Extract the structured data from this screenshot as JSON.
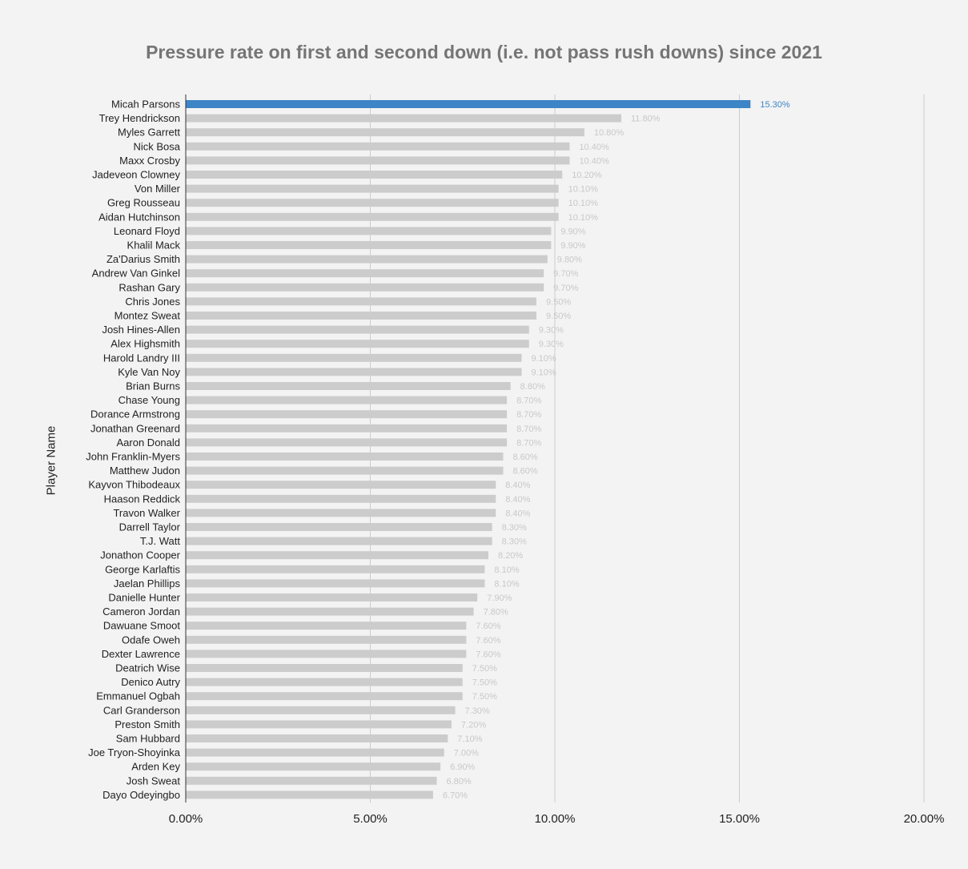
{
  "chart_data": {
    "type": "bar",
    "orientation": "horizontal",
    "title": "Pressure rate on first and second down (i.e. not pass rush downs) since 2021",
    "ylabel": "Player Name",
    "xlabel": "",
    "xlim": [
      0,
      20
    ],
    "x_ticks": [
      0,
      5,
      10,
      15,
      20
    ],
    "x_tick_labels": [
      "0.00%",
      "5.00%",
      "10.00%",
      "15.00%",
      "20.00%"
    ],
    "grid": "vertical",
    "legend": "none",
    "colors": {
      "highlight": "#3d85c6",
      "bar": "#cccccc",
      "label": "#c8c8c8",
      "grid": "#cccccc",
      "baseline": "#333333"
    },
    "highlight_index": 0,
    "categories": [
      "Micah Parsons",
      "Trey Hendrickson",
      "Myles Garrett",
      "Nick Bosa",
      "Maxx Crosby",
      "Jadeveon Clowney",
      "Von Miller",
      "Greg Rousseau",
      "Aidan Hutchinson",
      "Leonard Floyd",
      "Khalil Mack",
      "Za'Darius Smith",
      "Andrew Van Ginkel",
      "Rashan Gary",
      "Chris Jones",
      "Montez Sweat",
      "Josh Hines-Allen",
      "Alex Highsmith",
      "Harold Landry III",
      "Kyle Van Noy",
      "Brian Burns",
      "Chase Young",
      "Dorance Armstrong",
      "Jonathan Greenard",
      "Aaron Donald",
      "John Franklin-Myers",
      "Matthew Judon",
      "Kayvon Thibodeaux",
      "Haason Reddick",
      "Travon Walker",
      "Darrell Taylor",
      "T.J. Watt",
      "Jonathon Cooper",
      "George Karlaftis",
      "Jaelan Phillips",
      "Danielle Hunter",
      "Cameron Jordan",
      "Dawuane Smoot",
      "Odafe Oweh",
      "Dexter Lawrence",
      "Deatrich Wise",
      "Denico Autry",
      "Emmanuel Ogbah",
      "Carl Granderson",
      "Preston Smith",
      "Sam Hubbard",
      "Joe Tryon-Shoyinka",
      "Arden Key",
      "Josh Sweat",
      "Dayo Odeyingbo"
    ],
    "values": [
      15.3,
      11.8,
      10.8,
      10.4,
      10.4,
      10.2,
      10.1,
      10.1,
      10.1,
      9.9,
      9.9,
      9.8,
      9.7,
      9.7,
      9.5,
      9.5,
      9.3,
      9.3,
      9.1,
      9.1,
      8.8,
      8.7,
      8.7,
      8.7,
      8.7,
      8.6,
      8.6,
      8.4,
      8.4,
      8.4,
      8.3,
      8.3,
      8.2,
      8.1,
      8.1,
      7.9,
      7.8,
      7.6,
      7.6,
      7.6,
      7.5,
      7.5,
      7.5,
      7.3,
      7.2,
      7.1,
      7.0,
      6.9,
      6.8,
      6.7
    ],
    "value_labels": [
      "15.30%",
      "11.80%",
      "10.80%",
      "10.40%",
      "10.40%",
      "10.20%",
      "10.10%",
      "10.10%",
      "10.10%",
      "9.90%",
      "9.90%",
      "9.80%",
      "9.70%",
      "9.70%",
      "9.50%",
      "9.50%",
      "9.30%",
      "9.30%",
      "9.10%",
      "9.10%",
      "8.80%",
      "8.70%",
      "8.70%",
      "8.70%",
      "8.70%",
      "8.60%",
      "8.60%",
      "8.40%",
      "8.40%",
      "8.40%",
      "8.30%",
      "8.30%",
      "8.20%",
      "8.10%",
      "8.10%",
      "7.90%",
      "7.80%",
      "7.60%",
      "7.60%",
      "7.60%",
      "7.50%",
      "7.50%",
      "7.50%",
      "7.30%",
      "7.20%",
      "7.10%",
      "7.00%",
      "6.90%",
      "6.80%",
      "6.70%"
    ]
  }
}
